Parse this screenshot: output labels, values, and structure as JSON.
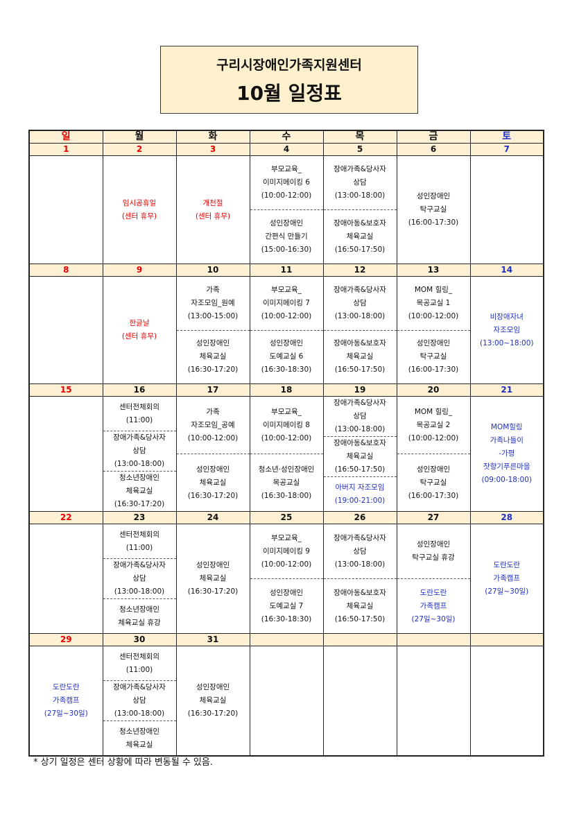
{
  "header": {
    "title": "구리시장애인가족지원센터",
    "subtitle": "10월 일정표"
  },
  "weekdays": [
    {
      "text": "일",
      "color": "#e00000"
    },
    {
      "text": "월"
    },
    {
      "text": "화"
    },
    {
      "text": "수"
    },
    {
      "text": "목"
    },
    {
      "text": "금"
    },
    {
      "text": "토",
      "color": "#1f2fc0"
    }
  ],
  "weeks": [
    {
      "days": [
        {
          "date": 1,
          "color": "#e00000",
          "events": []
        },
        {
          "date": 2,
          "color": "#e00000",
          "events": [
            {
              "lines": [
                "임시공휴일",
                "(센터 휴무)"
              ],
              "color": "#e00000"
            }
          ]
        },
        {
          "date": 3,
          "color": "#e00000",
          "events": [
            {
              "lines": [
                "개천절",
                "(센터 휴무)"
              ],
              "color": "#e00000"
            }
          ]
        },
        {
          "date": 4,
          "events": [
            {
              "lines": [
                "부모교육_",
                "이미지메이킹 6",
                "(10:00-12:00)"
              ]
            },
            {
              "lines": [
                "성인장애인",
                "간편식 만들기",
                "(15:00-16:30)"
              ]
            }
          ]
        },
        {
          "date": 5,
          "events": [
            {
              "lines": [
                "장애가족&당사자",
                "상담",
                "(13:00-18:00)"
              ]
            },
            {
              "lines": [
                "장애아동&보호자",
                "체육교실",
                "(16:50-17:50)"
              ]
            }
          ]
        },
        {
          "date": 6,
          "events": [
            {
              "lines": [
                "성인장애인",
                "탁구교실",
                "(16:00-17:30)"
              ]
            }
          ]
        },
        {
          "date": 7,
          "color": "#1f2fc0",
          "events": []
        }
      ]
    },
    {
      "days": [
        {
          "date": 8,
          "color": "#e00000",
          "events": []
        },
        {
          "date": 9,
          "color": "#e00000",
          "events": [
            {
              "lines": [
                "한글날",
                "(센터 휴무)"
              ],
              "color": "#e00000"
            }
          ]
        },
        {
          "date": 10,
          "events": [
            {
              "lines": [
                "가족",
                "자조모임_원예",
                "(13:00-15:00)"
              ]
            },
            {
              "lines": [
                "성인장애인",
                "체육교실",
                "(16:30-17:20)"
              ]
            }
          ]
        },
        {
          "date": 11,
          "events": [
            {
              "lines": [
                "부모교육_",
                "이미지메이킹 7",
                "(10:00-12:00)"
              ]
            },
            {
              "lines": [
                "성인장애인",
                "도예교실 6",
                "(16:30-18:30)"
              ]
            }
          ]
        },
        {
          "date": 12,
          "events": [
            {
              "lines": [
                "장애가족&당사자",
                "상담",
                "(13:00-18:00)"
              ]
            },
            {
              "lines": [
                "장애아동&보호자",
                "체육교실",
                "(16:50-17:50)"
              ]
            }
          ]
        },
        {
          "date": 13,
          "events": [
            {
              "lines": [
                "MOM 힐링_",
                "목공교실 1",
                "(10:00-12:00)"
              ]
            },
            {
              "lines": [
                "성인장애인",
                "탁구교실",
                "(16:00-17:30)"
              ]
            }
          ]
        },
        {
          "date": 14,
          "color": "#1f2fc0",
          "events": [
            {
              "lines": [
                "비장애자녀",
                "자조모임",
                "(13:00~18:00)"
              ],
              "color": "#1f2fc0"
            }
          ]
        }
      ]
    },
    {
      "days": [
        {
          "date": 15,
          "color": "#e00000",
          "events": []
        },
        {
          "date": 16,
          "events": [
            {
              "lines": [
                "센터전체회의",
                "(11:00)"
              ]
            },
            {
              "lines": [
                "장애가족&당사자",
                "상담",
                "(13:00-18:00)"
              ]
            },
            {
              "lines": [
                "청소년장애인",
                "체육교실",
                "(16:30-17:20)"
              ]
            }
          ]
        },
        {
          "date": 17,
          "events": [
            {
              "lines": [
                "가족",
                "자조모임_공예",
                "(10:00-12:00)"
              ]
            },
            {
              "lines": [
                "성인장애인",
                "체육교실",
                "(16:30-17:20)"
              ]
            }
          ]
        },
        {
          "date": 18,
          "events": [
            {
              "lines": [
                "부모교육_",
                "이미지메이킹 8",
                "(10:00-12:00)"
              ]
            },
            {
              "lines": [
                "청소년·성인장애인",
                "목공교실",
                "(16:30-18:00)"
              ]
            }
          ]
        },
        {
          "date": 19,
          "events": [
            {
              "lines": [
                "장애가족&당사자",
                "상담",
                "(13:00-18:00)"
              ]
            },
            {
              "lines": [
                "장애아동&보호자",
                "체육교실",
                "(16:50-17:50)"
              ]
            },
            {
              "lines": [
                "아버지 자조모임",
                "(19:00-21:00)"
              ],
              "color": "#1f2fc0"
            }
          ]
        },
        {
          "date": 20,
          "events": [
            {
              "lines": [
                "MOM 힐링_",
                "목공교실 2",
                "(10:00-12:00)"
              ]
            },
            {
              "lines": [
                "성인장애인",
                "탁구교실",
                "(16:00-17:30)"
              ]
            }
          ]
        },
        {
          "date": 21,
          "color": "#1f2fc0",
          "events": [
            {
              "lines": [
                "MOM힐링",
                "가족나들이",
                "-가평",
                "잣향기푸른마을",
                "(09:00-18:00)"
              ],
              "color": "#1f2fc0"
            }
          ]
        }
      ]
    },
    {
      "days": [
        {
          "date": 22,
          "color": "#e00000",
          "events": []
        },
        {
          "date": 23,
          "events": [
            {
              "lines": [
                "센터전체회의",
                "(11:00)"
              ]
            },
            {
              "lines": [
                "장애가족&당사자",
                "상담",
                "(13:00-18:00)"
              ]
            },
            {
              "lines": [
                "청소년장애인",
                "체육교실 휴강"
              ]
            }
          ]
        },
        {
          "date": 24,
          "events": [
            {
              "lines": [
                "성인장애인",
                "체육교실",
                "(16:30-17:20)"
              ]
            }
          ]
        },
        {
          "date": 25,
          "events": [
            {
              "lines": [
                "부모교육_",
                "이미지메이킹 9",
                "(10:00-12:00)"
              ]
            },
            {
              "lines": [
                "성인장애인",
                "도예교실 7",
                "(16:30-18:30)"
              ]
            }
          ]
        },
        {
          "date": 26,
          "events": [
            {
              "lines": [
                "장애가족&당사자",
                "상담",
                "(13:00-18:00)"
              ]
            },
            {
              "lines": [
                "장애아동&보호자",
                "체육교실",
                "(16:50-17:50)"
              ]
            }
          ]
        },
        {
          "date": 27,
          "events": [
            {
              "lines": [
                "성인장애인",
                "탁구교실 휴강"
              ]
            },
            {
              "lines": [
                "도란도란",
                "가족캠프",
                "(27일~30일)"
              ],
              "color": "#1f2fc0"
            }
          ]
        },
        {
          "date": 28,
          "color": "#1f2fc0",
          "events": [
            {
              "lines": [
                "도란도란",
                "가족캠프",
                "(27일~30일)"
              ],
              "color": "#1f2fc0"
            }
          ]
        }
      ]
    },
    {
      "days": [
        {
          "date": 29,
          "color": "#e00000",
          "events": [
            {
              "lines": [
                "도란도란",
                "가족캠프",
                "(27일~30일)"
              ],
              "color": "#1f2fc0"
            }
          ]
        },
        {
          "date": 30,
          "events": [
            {
              "lines": [
                "센터전체회의",
                "(11:00)"
              ]
            },
            {
              "lines": [
                "장애가족&당사자",
                "상담",
                "(13:00-18:00)"
              ]
            },
            {
              "lines": [
                "청소년장애인",
                "체육교실"
              ]
            }
          ]
        },
        {
          "date": 31,
          "events": [
            {
              "lines": [
                "성인장애인",
                "체육교실",
                "(16:30-17:20)"
              ]
            }
          ]
        },
        {
          "events": []
        },
        {
          "events": []
        },
        {
          "events": []
        },
        {
          "events": []
        }
      ]
    }
  ],
  "footnote": "* 상기 일정은 센터 상황에 따라 변동될 수 있음."
}
